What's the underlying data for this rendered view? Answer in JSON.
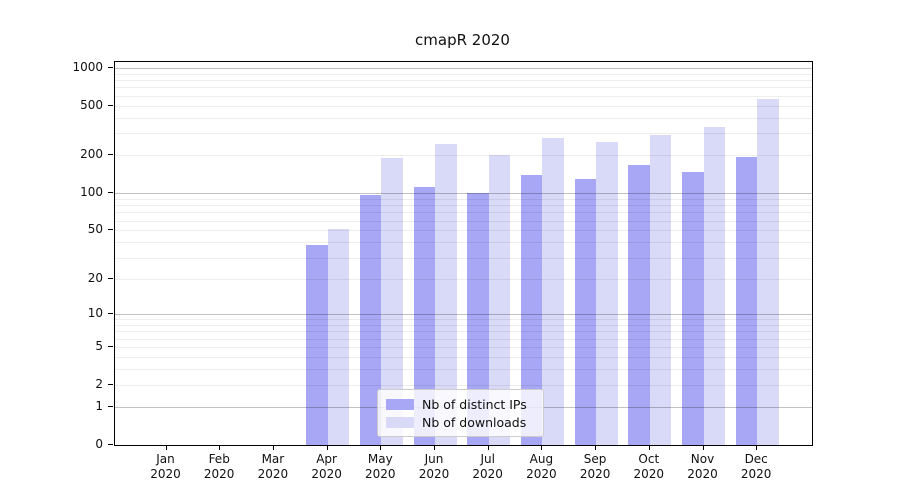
{
  "title": "cmapR 2020",
  "chart_data": {
    "type": "bar",
    "title": "cmapR 2020",
    "categories": [
      {
        "month": "Jan",
        "year": "2020"
      },
      {
        "month": "Feb",
        "year": "2020"
      },
      {
        "month": "Mar",
        "year": "2020"
      },
      {
        "month": "Apr",
        "year": "2020"
      },
      {
        "month": "May",
        "year": "2020"
      },
      {
        "month": "Jun",
        "year": "2020"
      },
      {
        "month": "Jul",
        "year": "2020"
      },
      {
        "month": "Aug",
        "year": "2020"
      },
      {
        "month": "Sep",
        "year": "2020"
      },
      {
        "month": "Oct",
        "year": "2020"
      },
      {
        "month": "Nov",
        "year": "2020"
      },
      {
        "month": "Dec",
        "year": "2020"
      }
    ],
    "series": [
      {
        "name": "Nb of distinct IPs",
        "color": "#a7a7f5",
        "values": [
          0,
          0,
          0,
          38,
          97,
          112,
          100,
          140,
          129,
          168,
          148,
          195
        ]
      },
      {
        "name": "Nb of downloads",
        "color": "#d9d9f8",
        "values": [
          0,
          0,
          0,
          51,
          190,
          248,
          200,
          277,
          255,
          290,
          336,
          560
        ]
      }
    ],
    "yscale": "log10(1+x)",
    "ylim": [
      0,
      1113
    ],
    "yticks": [
      0,
      1,
      2,
      5,
      10,
      20,
      50,
      100,
      200,
      500,
      1000
    ],
    "y_gridlines_major": [
      1,
      10,
      100,
      1000
    ],
    "y_gridlines_minor": [
      2,
      3,
      4,
      5,
      6,
      7,
      8,
      9,
      20,
      30,
      40,
      50,
      60,
      70,
      80,
      90,
      200,
      300,
      400,
      500,
      600,
      700,
      800,
      900
    ],
    "grid": "horizontal, drawn over bars",
    "legend_position": "inside bottom-center"
  }
}
